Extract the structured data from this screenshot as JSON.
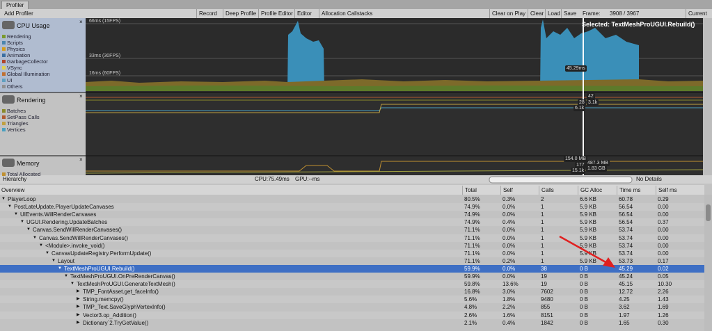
{
  "tab": "Profiler",
  "toolbar": {
    "add_profiler": "Add Profiler",
    "buttons": [
      "Record",
      "Deep Profile",
      "Profile Editor",
      "Editor",
      "Allocation Callstacks"
    ],
    "right_buttons": [
      "Clear on Play",
      "Clear",
      "Load",
      "Save"
    ],
    "frame_label": "Frame:",
    "frame_value": "3908 / 3967",
    "current": "Current"
  },
  "modules": [
    {
      "title": "CPU Usage",
      "legend": [
        "Rendering",
        "Scripts",
        "Physics",
        "Animation",
        "GarbageCollector",
        "VSync",
        "Global Illumination",
        "UI",
        "Others"
      ],
      "graph_labels": [
        "66ms (15FPS)",
        "33ms (30FPS)",
        "16ms (60FPS)",
        "Selected: TextMeshProUGUI.Rebuild()",
        "45.29ms"
      ]
    },
    {
      "title": "Rendering",
      "legend": [
        "Batches",
        "SetPass Calls",
        "Triangles",
        "Vertices"
      ],
      "graph_labels": [
        "42",
        "28",
        "3.1k",
        "6.1k"
      ]
    },
    {
      "title": "Memory",
      "legend": [
        "Total Allocated"
      ],
      "graph_labels": [
        "154.0 MB",
        "487.3 MB",
        "177",
        "1.83 GB",
        "15.1k"
      ]
    }
  ],
  "status": {
    "view": "Hierarchy",
    "cpu": "CPU:75.49ms",
    "gpu": "GPU:--ms",
    "details": "No Details"
  },
  "table": {
    "columns": [
      "Overview",
      "Total",
      "Self",
      "Calls",
      "GC Alloc",
      "Time ms",
      "Self ms"
    ],
    "rows": [
      [
        "PlayerLoop",
        "80.5%",
        "0.3%",
        "2",
        "6.6 KB",
        "60.78",
        "0.29"
      ],
      [
        "PostLateUpdate.PlayerUpdateCanvases",
        "74.9%",
        "0.0%",
        "1",
        "5.9 KB",
        "56.54",
        "0.00"
      ],
      [
        "UIEvents.WillRenderCanvases",
        "74.9%",
        "0.0%",
        "1",
        "5.9 KB",
        "56.54",
        "0.00"
      ],
      [
        "UGUI.Rendering.UpdateBatches",
        "74.9%",
        "0.4%",
        "1",
        "5.9 KB",
        "56.54",
        "0.37"
      ],
      [
        "Canvas.SendWillRenderCanvases()",
        "71.1%",
        "0.0%",
        "1",
        "5.9 KB",
        "53.74",
        "0.00"
      ],
      [
        "Canvas.SendWillRenderCanvases()",
        "71.1%",
        "0.0%",
        "1",
        "5.9 KB",
        "53.74",
        "0.00"
      ],
      [
        "<Module>.invoke_void()",
        "71.1%",
        "0.0%",
        "1",
        "5.9 KB",
        "53.74",
        "0.00"
      ],
      [
        "CanvasUpdateRegistry.PerformUpdate()",
        "71.1%",
        "0.0%",
        "1",
        "5.9 KB",
        "53.74",
        "0.00"
      ],
      [
        "Layout",
        "71.1%",
        "0.2%",
        "1",
        "5.9 KB",
        "53.73",
        "0.17"
      ],
      [
        "TextMeshProUGUI.Rebuild()",
        "59.9%",
        "0.0%",
        "38",
        "0 B",
        "45.29",
        "0.02"
      ],
      [
        "TextMeshProUGUI.OnPreRenderCanvas()",
        "59.9%",
        "0.0%",
        "19",
        "0 B",
        "45.24",
        "0.05"
      ],
      [
        "TextMeshProUGUI.GenerateTextMesh()",
        "59.8%",
        "13.6%",
        "19",
        "0 B",
        "45.15",
        "10.30"
      ],
      [
        "TMP_FontAsset.get_faceInfo()",
        "16.8%",
        "3.0%",
        "7602",
        "0 B",
        "12.72",
        "2.26"
      ],
      [
        "String.memcpy()",
        "5.6%",
        "1.8%",
        "9480",
        "0 B",
        "4.25",
        "1.43"
      ],
      [
        "TMP_Text.SaveGlyphVertexInfo()",
        "4.8%",
        "2.2%",
        "855",
        "0 B",
        "3.62",
        "1.69"
      ],
      [
        "Vector3.op_Addition()",
        "2.6%",
        "1.6%",
        "8151",
        "0 B",
        "1.97",
        "1.26"
      ],
      [
        "Dictionary`2.TryGetValue()",
        "2.1%",
        "0.4%",
        "1842",
        "0 B",
        "1.65",
        "0.30"
      ]
    ]
  }
}
